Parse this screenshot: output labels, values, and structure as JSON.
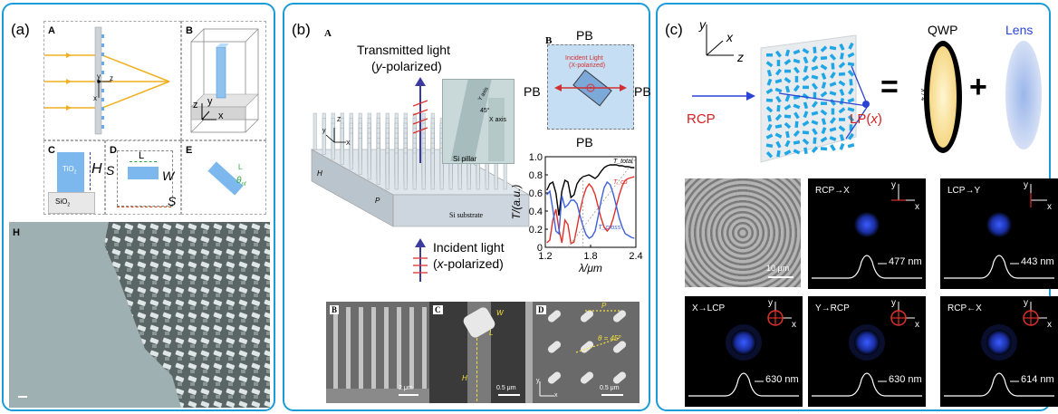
{
  "panel_a": {
    "label": "(a)",
    "sub_a": "A",
    "sub_b": "B",
    "sub_c": "C",
    "sub_d": "D",
    "sub_e": "E",
    "sub_h": "H",
    "axes_y": "y",
    "axes_z": "z",
    "axes_x": "x",
    "b_z": "z",
    "b_y": "y",
    "b_x": "x",
    "c_tio2": "TiO",
    "c_tio2_sub": "2",
    "c_h": "H",
    "c_sio2": "SiO",
    "c_sio2_sub": "2",
    "d_l": "L",
    "d_w": "W",
    "d_s1": "S",
    "d_s2": "S",
    "e_l": "L",
    "e_theta": "θ",
    "e_theta_sub": "nf"
  },
  "panel_b": {
    "label": "(b)",
    "sub_a": "A",
    "sub_b": "B",
    "sub_b2": "B",
    "sub_c": "C",
    "sub_d": "D",
    "transmitted_1": "Transmitted light",
    "transmitted_2a": "(",
    "transmitted_2b": "y",
    "transmitted_2c": "-polarized)",
    "incident_1": "Incident light",
    "incident_2a": "(",
    "incident_2b": "x",
    "incident_2c": "-polarized)",
    "si_pillar": "Si pillar",
    "si_substrate": "Si substrate",
    "inset_y": "y",
    "inset_x": "X",
    "inset_z": "Z",
    "h_label": "H",
    "p_label": "P",
    "axis_label_y": "Y axis",
    "axis_label_x": "X axis",
    "angle_45": "45°",
    "pb_top": "PB",
    "pb_left": "PB",
    "pb_right": "PB",
    "pb_bottom": "PB",
    "incident_light_b": "Incident Light",
    "incident_light_b2": "(X-polarized)",
    "sem_b_scale": "2 μm",
    "sem_c_scale": "0.5 μm",
    "sem_d_scale": "0.5 μm",
    "sem_c_w": "W",
    "sem_c_l": "L",
    "sem_c_h": "H",
    "sem_d_p": "P",
    "sem_d_theta": "θ = 45°",
    "sem_d_y": "y",
    "sem_d_x": "x"
  },
  "chart_data": {
    "type": "line",
    "title": "",
    "xlabel": "λ/μm",
    "ylabel": "T/(a.u.)",
    "xlim": [
      1.2,
      2.4
    ],
    "ylim": [
      0,
      1.0
    ],
    "xticks": [
      "1.2",
      "1.8",
      "2.4"
    ],
    "yticks": [
      "0",
      "0.2",
      "0.4",
      "0.6",
      "0.8",
      "1.0"
    ],
    "series": [
      {
        "name": "T_total",
        "color": "#000000",
        "x": [
          1.22,
          1.26,
          1.3,
          1.34,
          1.38,
          1.42,
          1.46,
          1.5,
          1.54,
          1.58,
          1.62,
          1.66,
          1.7,
          1.74,
          1.78,
          1.82,
          1.86,
          1.9,
          1.94,
          1.98,
          2.02,
          2.06,
          2.1,
          2.14,
          2.18,
          2.22,
          2.26,
          2.3,
          2.34,
          2.38
        ],
        "y": [
          0.63,
          0.7,
          0.72,
          0.6,
          0.35,
          0.62,
          0.74,
          0.72,
          0.55,
          0.58,
          0.7,
          0.75,
          0.78,
          0.79,
          0.8,
          0.78,
          0.76,
          0.79,
          0.84,
          0.88,
          0.9,
          0.91,
          0.91,
          0.91,
          0.9,
          0.9,
          0.89,
          0.89,
          0.88,
          0.88
        ]
      },
      {
        "name": "T_co",
        "color": "#e0302a",
        "x": [
          1.22,
          1.26,
          1.3,
          1.34,
          1.38,
          1.42,
          1.46,
          1.5,
          1.54,
          1.58,
          1.62,
          1.66,
          1.7,
          1.74,
          1.78,
          1.82,
          1.86,
          1.9,
          1.94,
          1.98,
          2.02,
          2.06,
          2.1,
          2.14,
          2.18,
          2.22,
          2.26,
          2.3,
          2.34,
          2.38
        ],
        "y": [
          0.05,
          0.08,
          0.3,
          0.42,
          0.2,
          0.05,
          0.3,
          0.25,
          0.04,
          0.06,
          0.22,
          0.4,
          0.55,
          0.65,
          0.7,
          0.66,
          0.58,
          0.45,
          0.32,
          0.22,
          0.18,
          0.22,
          0.32,
          0.45,
          0.58,
          0.68,
          0.74,
          0.76,
          0.77,
          0.78
        ]
      },
      {
        "name": "T_cross",
        "color": "#3d5fd9",
        "x": [
          1.22,
          1.26,
          1.3,
          1.34,
          1.38,
          1.42,
          1.46,
          1.5,
          1.54,
          1.58,
          1.62,
          1.66,
          1.7,
          1.74,
          1.78,
          1.82,
          1.86,
          1.9,
          1.94,
          1.98,
          2.02,
          2.06,
          2.1,
          2.14,
          2.18,
          2.22,
          2.26,
          2.3,
          2.34,
          2.38
        ],
        "y": [
          0.58,
          0.62,
          0.42,
          0.18,
          0.15,
          0.57,
          0.44,
          0.47,
          0.52,
          0.52,
          0.48,
          0.35,
          0.23,
          0.14,
          0.1,
          0.12,
          0.18,
          0.34,
          0.52,
          0.66,
          0.72,
          0.69,
          0.59,
          0.46,
          0.32,
          0.22,
          0.15,
          0.13,
          0.11,
          0.1
        ]
      }
    ],
    "legend": [
      "T_total",
      "T_co",
      "T_cross"
    ]
  },
  "panel_c": {
    "label": "(c)",
    "axis_y": "y",
    "axis_x": "x",
    "axis_z": "z",
    "rcp": "RCP",
    "lp_a": "LP(",
    "lp_b": "x",
    "lp_c": ")",
    "equals": "=",
    "plus": "+",
    "qwp": "QWP",
    "lens": "Lens",
    "lambda4": "λ / 4",
    "sem_scale": "10 μm",
    "tiles": [
      {
        "label": "RCP→X",
        "nm": "477 nm",
        "ax_y": "y",
        "ax_x": "x"
      },
      {
        "label": "LCP→Y",
        "nm": "443 nm",
        "ax_y": "y",
        "ax_x": "x"
      },
      {
        "label": "X→LCP",
        "nm": "630 nm",
        "ax_y": "y",
        "ax_x": "x"
      },
      {
        "label": "Y→RCP",
        "nm": "630 nm",
        "ax_y": "y",
        "ax_x": "x"
      },
      {
        "label": "RCP←X",
        "nm": "614 nm",
        "ax_y": "y",
        "ax_x": "x"
      }
    ]
  }
}
